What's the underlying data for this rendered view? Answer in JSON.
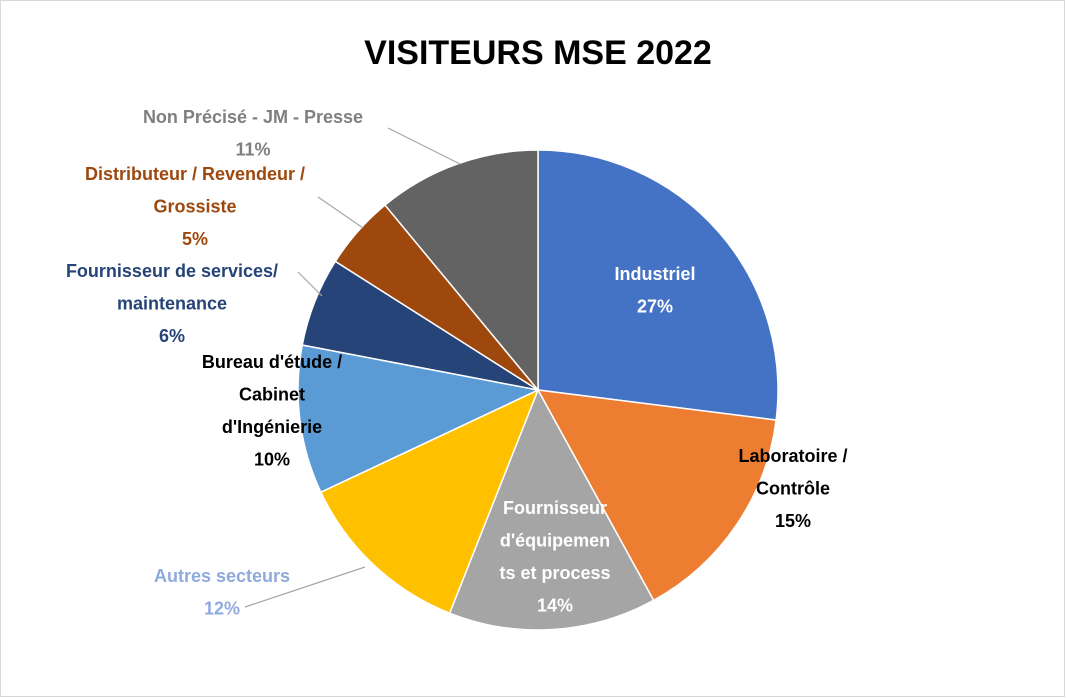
{
  "chart_data": {
    "type": "pie",
    "title": "VISITEURS MSE 2022",
    "categories": [
      "Industriel",
      "Laboratoire /\nContrôle",
      "Fournisseur\nd'équipemen\nts et process",
      "Autres secteurs",
      "Bureau d'étude /\nCabinet\nd'Ingénierie",
      "Fournisseur de services/\nmaintenance",
      "Distributeur / Revendeur /\nGrossiste",
      "Non Précisé - JM - Presse"
    ],
    "values": [
      27,
      15,
      14,
      12,
      10,
      6,
      5,
      11
    ],
    "value_labels": [
      "27%",
      "15%",
      "14%",
      "12%",
      "10%",
      "6%",
      "5%",
      "11%"
    ],
    "colors": [
      "#4472c4",
      "#ed7d31",
      "#a5a5a5",
      "#ffc000",
      "#5b9bd5",
      "#264478",
      "#9e480e",
      "#636363"
    ],
    "label_colors": [
      "#ffffff",
      "#000000",
      "#ffffff",
      "#8faadc",
      "#000000",
      "#264478",
      "#9e480e",
      "#7f7f7f"
    ]
  }
}
